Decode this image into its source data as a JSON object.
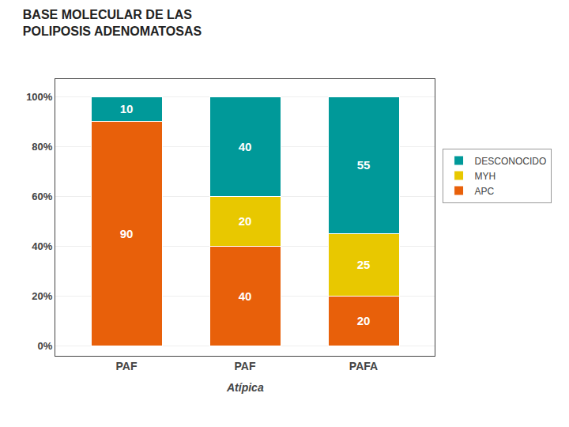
{
  "chart_data": {
    "type": "bar",
    "stacked": true,
    "title": "BASE MOLECULAR DE LAS\nPOLIPOSIS ADENOMATOSAS",
    "categories": [
      "PAF",
      "PAF",
      "PAFA"
    ],
    "series": [
      {
        "name": "APC",
        "color": "#E8600A",
        "values": [
          90,
          40,
          20
        ]
      },
      {
        "name": "MYH",
        "color": "#E8C800",
        "values": [
          0,
          20,
          25
        ]
      },
      {
        "name": "DESCONOCIDO",
        "color": "#009999",
        "values": [
          10,
          40,
          55
        ]
      }
    ],
    "ylim": [
      -4,
      107
    ],
    "yticks": [
      {
        "value": 0,
        "label": "0%"
      },
      {
        "value": 20,
        "label": "20%"
      },
      {
        "value": 40,
        "label": "40%"
      },
      {
        "value": 60,
        "label": "60%"
      },
      {
        "value": 80,
        "label": "80%"
      },
      {
        "value": 100,
        "label": "100%"
      }
    ],
    "annotations": [
      {
        "text": "Atípica",
        "x": 1
      }
    ],
    "data_labels": true,
    "grid": true,
    "legend": "right"
  }
}
